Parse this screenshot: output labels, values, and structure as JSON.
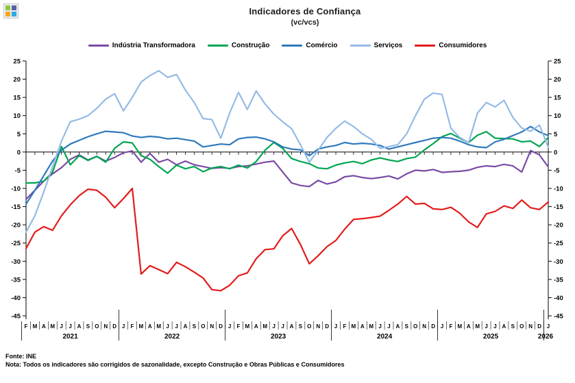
{
  "header": {
    "title": "Indicadores de Confiança",
    "subtitle": "(vc/vcs)"
  },
  "logo": {
    "squares": [
      "#8DC63F",
      "#5C5FA8",
      "#F5A81C",
      "#2FAAE1"
    ]
  },
  "footer": {
    "source": "Fonte: INE",
    "note": "Nota: Todos os indicadores são corrigidos de sazonalidade, excepto Construção e Obras Públicas e Consumidores"
  },
  "chart_data": {
    "type": "line",
    "title": "Indicadores de Confiança",
    "subtitle": "(vc/vcs)",
    "xlabel": "",
    "ylabel": "",
    "ylim": [
      -45,
      25
    ],
    "yticks": [
      25,
      20,
      15,
      10,
      5,
      0,
      -5,
      -10,
      -15,
      -20,
      -25,
      -30,
      -35,
      -40,
      -45
    ],
    "grid": false,
    "legend_position": "top",
    "axis_color": "#000000",
    "highlight_last": true,
    "highlight_color": "#2E9BD6",
    "months": [
      "F",
      "M",
      "A",
      "M",
      "J",
      "J",
      "A",
      "S",
      "O",
      "N",
      "D",
      "J",
      "F",
      "M",
      "A",
      "M",
      "J",
      "J",
      "A",
      "S",
      "O",
      "N",
      "D",
      "J",
      "F",
      "M",
      "A",
      "M",
      "J",
      "J",
      "A",
      "S",
      "O",
      "N",
      "D",
      "J",
      "F",
      "M",
      "A",
      "M",
      "J",
      "J",
      "A",
      "S",
      "O",
      "N",
      "D",
      "J",
      "F",
      "M",
      "A",
      "M",
      "J",
      "J",
      "A",
      "S",
      "O",
      "N",
      "D",
      "J"
    ],
    "years": [
      {
        "label": "2021",
        "from": 0,
        "to": 10
      },
      {
        "label": "2022",
        "from": 11,
        "to": 22
      },
      {
        "label": "2023",
        "from": 23,
        "to": 34
      },
      {
        "label": "2024",
        "from": 35,
        "to": 46
      },
      {
        "label": "2025",
        "from": 47,
        "to": 58
      },
      {
        "label": "2026",
        "from": 59,
        "to": 59,
        "highlight": true
      }
    ],
    "series": [
      {
        "name": "Indústria Transformadora",
        "color": "#7A4AA5",
        "values": [
          -13,
          -10.5,
          -8,
          -6,
          -4.3,
          -2.0,
          -0.8,
          -2.2,
          -1.2,
          -2.5,
          -1.5,
          -0.2,
          0.3,
          -2.8,
          -0.4,
          -2.8,
          -2.0,
          -3.5,
          -2.5,
          -3.5,
          -4.0,
          -4.5,
          -4.3,
          -4.5,
          -4.0,
          -3.8,
          -3.3,
          -2.8,
          -2.5,
          -5.5,
          -8.5,
          -9.2,
          -9.5,
          -7.8,
          -8.8,
          -8.2,
          -6.8,
          -6.5,
          -7.0,
          -7.3,
          -7.0,
          -6.6,
          -7.4,
          -6.0,
          -5.0,
          -5.2,
          -4.8,
          -5.6,
          -5.4,
          -5.3,
          -5.0,
          -4.2,
          -3.8,
          -4.0,
          -3.4,
          -3.8,
          -5.5,
          0.4,
          -0.8,
          -4.1
        ]
      },
      {
        "name": "Construção",
        "color": "#00A551",
        "values": [
          -8.5,
          -8.5,
          -8,
          -5.5,
          1.5,
          -3.5,
          -1.0,
          -2.3,
          -1.2,
          -2.8,
          1.0,
          2.8,
          2.5,
          -1.0,
          -2.0,
          -4.0,
          -5.8,
          -3.6,
          -4.6,
          -4.0,
          -5.4,
          -4.4,
          -4.0,
          -4.6,
          -3.6,
          -4.4,
          -2.6,
          0.5,
          2.6,
          1.0,
          -1.8,
          -2.6,
          -3.2,
          -4.4,
          -4.6,
          -3.6,
          -3.0,
          -2.6,
          -3.2,
          -2.2,
          -1.6,
          -2.2,
          -2.6,
          -1.8,
          -1.4,
          0.6,
          2.3,
          4.2,
          5.1,
          3.8,
          2.6,
          4.6,
          5.6,
          3.8,
          3.7,
          3.6,
          2.8,
          3.0,
          1.5,
          4.0
        ]
      },
      {
        "name": "Comércio",
        "color": "#2E79BB",
        "values": [
          -14.3,
          -10.5,
          -6.5,
          -2.5,
          0.5,
          2.2,
          3.2,
          4.2,
          5.0,
          5.7,
          5.5,
          5.3,
          4.4,
          4.0,
          4.3,
          4.1,
          3.6,
          3.8,
          3.4,
          3.0,
          1.4,
          1.8,
          2.2,
          2.0,
          3.6,
          4.0,
          4.1,
          3.6,
          2.8,
          1.4,
          0.8,
          0.6,
          -1.0,
          0.8,
          1.4,
          1.8,
          2.6,
          2.2,
          2.4,
          2.2,
          1.8,
          0.8,
          1.4,
          2.0,
          2.6,
          3.2,
          3.8,
          4.0,
          3.8,
          3.0,
          2.0,
          1.4,
          1.2,
          2.8,
          3.5,
          4.5,
          5.5,
          7.0,
          5.5,
          4.5
        ]
      },
      {
        "name": "Serviços",
        "color": "#95BAE6",
        "values": [
          -22,
          -17.5,
          -11,
          -4,
          3,
          8.3,
          9,
          10,
          12,
          14.5,
          16,
          11.3,
          15,
          19.2,
          21,
          22.3,
          20.5,
          21.3,
          17,
          13.6,
          9.2,
          8.9,
          3.8,
          10.7,
          16.4,
          11.7,
          16.8,
          13.2,
          10.4,
          8.3,
          6.4,
          2.0,
          -2.8,
          0.5,
          4.0,
          6.5,
          8.5,
          7.0,
          5.0,
          3.5,
          1.0,
          1.5,
          2.0,
          5.0,
          10.0,
          14.5,
          16.2,
          15.8,
          6.5,
          4.0,
          2.6,
          10.7,
          13.6,
          12.4,
          14.2,
          9.5,
          6.6,
          5.7,
          7.4,
          1.3
        ]
      },
      {
        "name": "Consumidores",
        "color": "#E31A1A",
        "values": [
          -26.5,
          -22,
          -20.5,
          -21.5,
          -17.5,
          -14.5,
          -12,
          -10.2,
          -10.5,
          -12.4,
          -15.3,
          -12.8,
          -10,
          -33.5,
          -31.2,
          -32.3,
          -33.4,
          -30.3,
          -31.5,
          -33,
          -34.6,
          -37.8,
          -38.1,
          -36.6,
          -34,
          -33.2,
          -29.3,
          -26.8,
          -26.6,
          -23,
          -21,
          -25.4,
          -30.7,
          -28.5,
          -26,
          -24.3,
          -21.2,
          -18.5,
          -18.3,
          -18,
          -17.6,
          -16,
          -14.3,
          -12.2,
          -14.3,
          -14.1,
          -15.6,
          -15.8,
          -15.2,
          -16.8,
          -19.2,
          -20.7,
          -17,
          -16.3,
          -14.8,
          -15.5,
          -13.2,
          -15.3,
          -15.8,
          -13.7
        ]
      }
    ]
  }
}
